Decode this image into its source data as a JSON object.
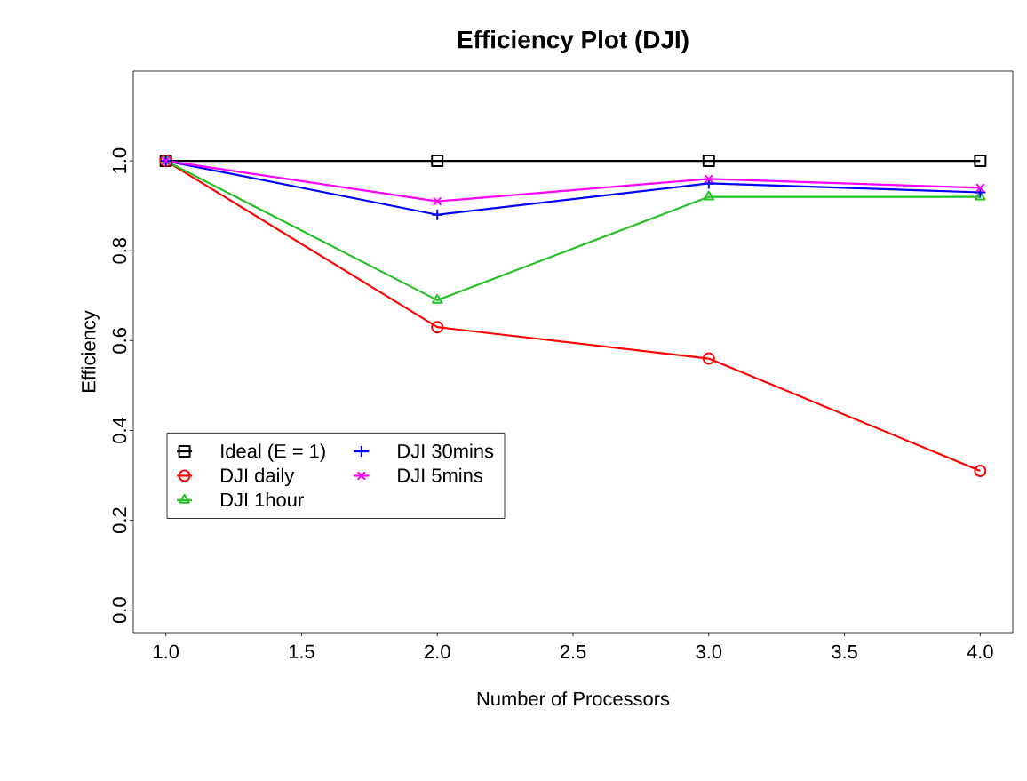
{
  "chart_data": {
    "type": "line",
    "title": "Efficiency Plot (DJI)",
    "xlabel": "Number of Processors",
    "ylabel": "Efficiency",
    "x": [
      1,
      2,
      3,
      4
    ],
    "series": [
      {
        "name": "Ideal (E = 1)",
        "color": "#000000",
        "marker": "square",
        "values": [
          1.0,
          1.0,
          1.0,
          1.0
        ]
      },
      {
        "name": "DJI daily",
        "color": "#ff0000",
        "marker": "circle",
        "values": [
          1.0,
          0.63,
          0.56,
          0.31
        ]
      },
      {
        "name": "DJI 1hour",
        "color": "#22c022",
        "marker": "triangle",
        "values": [
          1.0,
          0.69,
          0.92,
          0.92
        ]
      },
      {
        "name": "DJI 30mins",
        "color": "#0000ff",
        "marker": "cross",
        "values": [
          1.0,
          0.88,
          0.95,
          0.93
        ]
      },
      {
        "name": "DJI 5mins",
        "color": "#ff00ff",
        "marker": "cross",
        "values": [
          1.0,
          0.91,
          0.96,
          0.94
        ]
      }
    ],
    "xlim": [
      0.88,
      4.12
    ],
    "ylim": [
      -0.05,
      1.2
    ],
    "xticks": [
      {
        "value": 1,
        "label": "1.0"
      },
      {
        "value": 1.5,
        "label": "1.5"
      },
      {
        "value": 2,
        "label": "2.0"
      },
      {
        "value": 2.5,
        "label": "2.5"
      },
      {
        "value": 3,
        "label": "3.0"
      },
      {
        "value": 3.5,
        "label": "3.5"
      },
      {
        "value": 4,
        "label": "4.0"
      }
    ],
    "yticks": [
      {
        "value": 0,
        "label": "0.0"
      },
      {
        "value": 0.2,
        "label": "0.2"
      },
      {
        "value": 0.4,
        "label": "0.4"
      },
      {
        "value": 0.6,
        "label": "0.6"
      },
      {
        "value": 0.8,
        "label": "0.8"
      },
      {
        "value": 1.0,
        "label": "1.0"
      }
    ],
    "legend": "bottom left",
    "line_style": "solid"
  }
}
